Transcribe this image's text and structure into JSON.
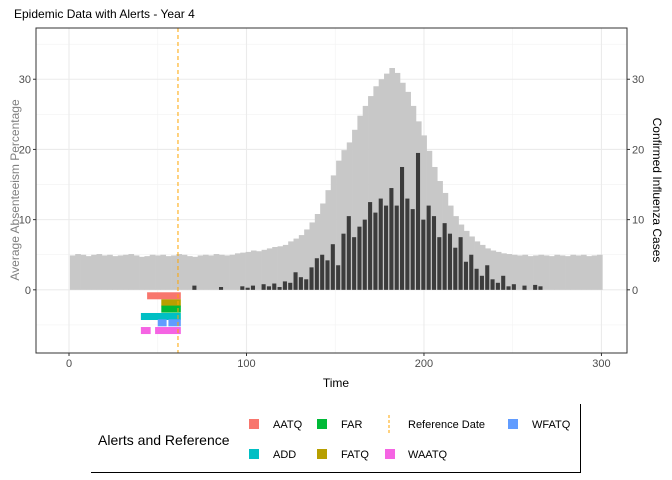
{
  "chart_data": {
    "type": "bar",
    "title": "Epidemic Data with Alerts - Year 4",
    "xlabel": "Time",
    "ylabel_left": "Average Absenteeism Percentage",
    "ylabel_right": "Confirmed Influenza Cases",
    "xlim": [
      -18.6,
      314.4
    ],
    "ylim": [
      -9,
      37.3
    ],
    "x_ticks": [
      "0",
      "100",
      "200",
      "300"
    ],
    "y_ticks_left": [
      "0",
      "10",
      "20",
      "30"
    ],
    "y_ticks_right": [
      "0",
      "10",
      "20",
      "30"
    ],
    "grid": true,
    "x_step": 3,
    "x_start": 1,
    "series": [
      {
        "name": "Average Absenteeism Percentage",
        "color": "#c8c8c8",
        "values": [
          4.9,
          5.1,
          5.0,
          4.8,
          5.0,
          5.1,
          4.9,
          5.0,
          4.8,
          4.9,
          5.0,
          5.1,
          4.9,
          4.7,
          4.8,
          5.0,
          4.9,
          5.0,
          4.8,
          4.9,
          5.1,
          5.0,
          4.8,
          4.7,
          4.9,
          5.0,
          4.9,
          5.1,
          5.0,
          4.9,
          5.0,
          5.2,
          5.3,
          5.4,
          5.6,
          5.5,
          5.7,
          5.9,
          6.1,
          6.2,
          6.4,
          6.9,
          7.3,
          7.8,
          8.6,
          9.6,
          10.8,
          12.3,
          14.2,
          16.3,
          18.4,
          19.9,
          21.0,
          22.8,
          24.8,
          26.2,
          27.6,
          29.0,
          30.0,
          30.8,
          31.6,
          30.9,
          29.5,
          28.2,
          26.2,
          24.0,
          22.0,
          19.8,
          17.5,
          15.5,
          13.8,
          12.0,
          10.5,
          9.3,
          8.4,
          7.6,
          6.9,
          6.4,
          5.9,
          5.6,
          5.4,
          5.2,
          5.1,
          5.0,
          4.9,
          5.0,
          4.8,
          4.9,
          5.0,
          4.9,
          4.8,
          5.0,
          4.9,
          4.8,
          5.0,
          4.9,
          5.0,
          4.8,
          4.9,
          5.0
        ]
      },
      {
        "name": "Confirmed Influenza Cases",
        "color": "#3c3c3c",
        "values": [
          0,
          0,
          0,
          0,
          0,
          0,
          0,
          0,
          0,
          0,
          0,
          0,
          0,
          0,
          0,
          0,
          0,
          0,
          0,
          0,
          0,
          0,
          0,
          0.6,
          0,
          0,
          0,
          0,
          0.4,
          0,
          0,
          0,
          0.5,
          0.3,
          0.6,
          0,
          0.8,
          0.5,
          0.9,
          0.4,
          1.2,
          1.0,
          2.5,
          1.8,
          1.5,
          3.2,
          4.5,
          5.0,
          4.2,
          6.5,
          3.5,
          8.0,
          10.5,
          7.5,
          9.0,
          10.0,
          12.5,
          11.0,
          13.0,
          12.0,
          14.5,
          12.0,
          17.5,
          13.0,
          11.5,
          19.5,
          10.0,
          12.0,
          10.5,
          7.5,
          9.5,
          8.0,
          6.0,
          7.5,
          4.0,
          5.0,
          3.0,
          2.0,
          3.5,
          1.5,
          1.0,
          2.0,
          0.5,
          0.8,
          0,
          0.6,
          0,
          0.7,
          0.5,
          0,
          0,
          0,
          0,
          0,
          0,
          0,
          0,
          0,
          0,
          0
        ]
      }
    ],
    "reference_date": {
      "x": 61.4,
      "color": "#FFA500"
    },
    "alerts": [
      {
        "name": "AATQ",
        "color": "#F8766D",
        "y": -0.85,
        "ranges": [
          [
            44,
            63
          ]
        ]
      },
      {
        "name": "FATQ",
        "color": "#B79F00",
        "y": -1.85,
        "ranges": [
          [
            52,
            63
          ]
        ]
      },
      {
        "name": "FAR",
        "color": "#00BA38",
        "y": -2.75,
        "ranges": [
          [
            52,
            63
          ]
        ]
      },
      {
        "name": "ADD",
        "color": "#00BFC4",
        "y": -3.8,
        "ranges": [
          [
            40.5,
            63
          ]
        ]
      },
      {
        "name": "WFATQ",
        "color": "#619CFF",
        "y": -4.7,
        "ranges": [
          [
            50,
            55
          ],
          [
            56,
            63
          ]
        ]
      },
      {
        "name": "WAATQ",
        "color": "#F564E3",
        "y": -5.8,
        "ranges": [
          [
            40.5,
            46
          ],
          [
            48.5,
            63
          ]
        ]
      }
    ],
    "legend": {
      "title": "Alerts and Reference",
      "placement": "bottom",
      "items": [
        {
          "label": "AATQ",
          "color": "#F8766D",
          "kind": "box"
        },
        {
          "label": "FAR",
          "color": "#00BA38",
          "kind": "box"
        },
        {
          "label": "Reference Date",
          "color": "#FFA500",
          "kind": "dashed"
        },
        {
          "label": "WFATQ",
          "color": "#619CFF",
          "kind": "box"
        },
        {
          "label": "ADD",
          "color": "#00BFC4",
          "kind": "box"
        },
        {
          "label": "FATQ",
          "color": "#B79F00",
          "kind": "box"
        },
        {
          "label": "WAATQ",
          "color": "#F564E3",
          "kind": "box"
        }
      ]
    }
  }
}
